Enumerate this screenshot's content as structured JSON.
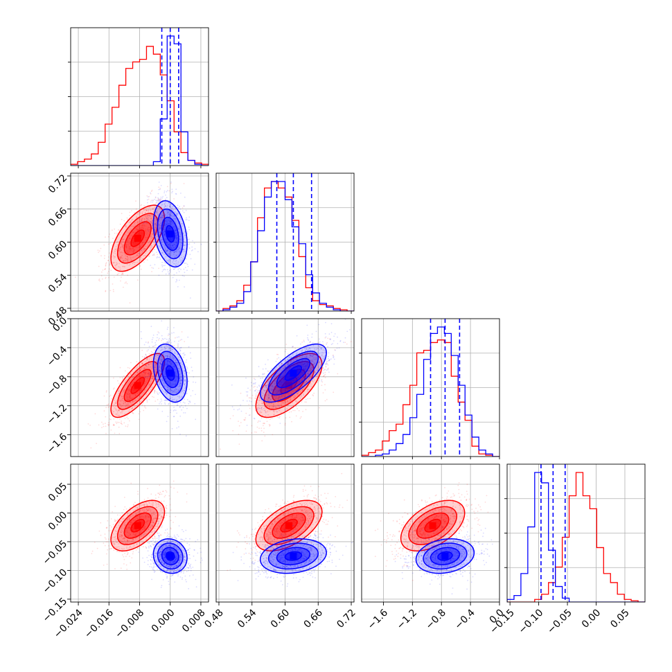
{
  "chart_data": {
    "type": "corner",
    "title": "",
    "grid": true,
    "colors": {
      "series_a": "#ff0000",
      "series_b": "#0000ff",
      "grid": "#b0b0b0"
    },
    "parameters": [
      {
        "lim": [
          -0.026,
          0.01
        ],
        "ticks": [
          -0.024,
          -0.016,
          -0.008,
          0.0,
          0.008
        ],
        "tick_labels": [
          "−0.024",
          "−0.016",
          "−0.008",
          "0.000",
          "0.008"
        ],
        "quantiles": [
          -0.0022,
          0.0,
          0.0022
        ]
      },
      {
        "lim": [
          0.475,
          0.725
        ],
        "ticks": [
          0.48,
          0.54,
          0.6,
          0.66,
          0.72
        ],
        "tick_labels": [
          "0.48",
          "0.54",
          "0.60",
          "0.66",
          "0.72"
        ],
        "quantiles": [
          0.585,
          0.615,
          0.648
        ]
      },
      {
        "lim": [
          -1.9,
          0.0
        ],
        "ticks": [
          -1.6,
          -1.2,
          -0.8,
          -0.4,
          0.0
        ],
        "tick_labels": [
          "−1.6",
          "−1.2",
          "−0.8",
          "−0.4",
          "0.0"
        ],
        "quantiles": [
          -0.95,
          -0.75,
          -0.55
        ]
      },
      {
        "lim": [
          -0.155,
          0.085
        ],
        "ticks": [
          -0.15,
          -0.1,
          -0.05,
          0.0,
          0.05
        ],
        "tick_labels": [
          "−0.15",
          "−0.10",
          "−0.05",
          "0.00",
          "0.05"
        ],
        "quantiles": [
          -0.096,
          -0.075,
          -0.054
        ]
      }
    ],
    "series": [
      {
        "color": "#ff0000",
        "mean": [
          -0.0085,
          0.607,
          -0.92,
          -0.022
        ],
        "std": [
          0.0035,
          0.03,
          0.22,
          0.022
        ],
        "corr": {
          "1_0": 0.6,
          "2_0": 0.75,
          "2_1": 0.65,
          "3_0": 0.55,
          "3_1": 0.55,
          "3_2": 0.5
        },
        "hist": [
          {
            "lo": -0.026,
            "step": 0.0018,
            "counts": [
              0.01,
              0.03,
              0.05,
              0.09,
              0.18,
              0.32,
              0.45,
              0.62,
              0.75,
              0.8,
              0.82,
              0.92,
              0.86,
              0.7,
              0.5,
              0.26,
              0.1,
              0.04,
              0.02,
              0.01
            ]
          },
          {
            "lo": 0.475,
            "step": 0.0125,
            "counts": [
              0.0,
              0.02,
              0.04,
              0.08,
              0.2,
              0.38,
              0.72,
              0.95,
              1.0,
              0.95,
              0.88,
              0.7,
              0.42,
              0.18,
              0.08,
              0.05,
              0.04,
              0.02,
              0.01,
              0.0
            ]
          },
          {
            "lo": -1.9,
            "step": 0.095,
            "counts": [
              0.01,
              0.03,
              0.05,
              0.12,
              0.2,
              0.25,
              0.4,
              0.55,
              0.8,
              0.82,
              0.88,
              0.9,
              0.88,
              0.62,
              0.42,
              0.28,
              0.08,
              0.02,
              0.01,
              0.0
            ]
          },
          {
            "lo": -0.155,
            "step": 0.012,
            "counts": [
              0.0,
              0.0,
              0.0,
              0.0,
              0.02,
              0.06,
              0.15,
              0.27,
              0.5,
              0.82,
              1.0,
              0.82,
              0.72,
              0.42,
              0.22,
              0.15,
              0.06,
              0.02,
              0.01,
              0.0
            ]
          }
        ]
      },
      {
        "color": "#0000ff",
        "mean": [
          0.0,
          0.615,
          -0.75,
          -0.075
        ],
        "std": [
          0.0022,
          0.03,
          0.2,
          0.015
        ],
        "corr": {
          "1_0": -0.3,
          "2_0": -0.3,
          "2_1": 0.7,
          "3_0": -0.1,
          "3_1": 0.2,
          "3_2": 0.2
        },
        "hist": [
          {
            "lo": -0.026,
            "step": 0.0018,
            "counts": [
              0.0,
              0.0,
              0.0,
              0.0,
              0.0,
              0.0,
              0.0,
              0.0,
              0.0,
              0.0,
              0.0,
              0.0,
              0.03,
              0.36,
              1.0,
              0.94,
              0.26,
              0.04,
              0.01,
              0.0
            ]
          },
          {
            "lo": 0.475,
            "step": 0.0125,
            "counts": [
              0.0,
              0.01,
              0.03,
              0.06,
              0.15,
              0.38,
              0.62,
              0.88,
              1.0,
              1.0,
              0.86,
              0.65,
              0.52,
              0.28,
              0.14,
              0.06,
              0.03,
              0.01,
              0.0,
              0.0
            ]
          },
          {
            "lo": -1.9,
            "step": 0.095,
            "counts": [
              0.0,
              0.0,
              0.01,
              0.02,
              0.05,
              0.1,
              0.17,
              0.3,
              0.48,
              0.75,
              0.95,
              1.0,
              0.95,
              0.78,
              0.55,
              0.32,
              0.15,
              0.05,
              0.02,
              0.0
            ]
          },
          {
            "lo": -0.155,
            "step": 0.012,
            "counts": [
              0.02,
              0.05,
              0.22,
              0.58,
              1.0,
              0.92,
              0.4,
              0.12,
              0.03,
              0.0,
              0.0,
              0.0,
              0.0,
              0.0,
              0.0,
              0.0,
              0.0,
              0.0,
              0.0,
              0.0
            ]
          }
        ]
      }
    ]
  }
}
